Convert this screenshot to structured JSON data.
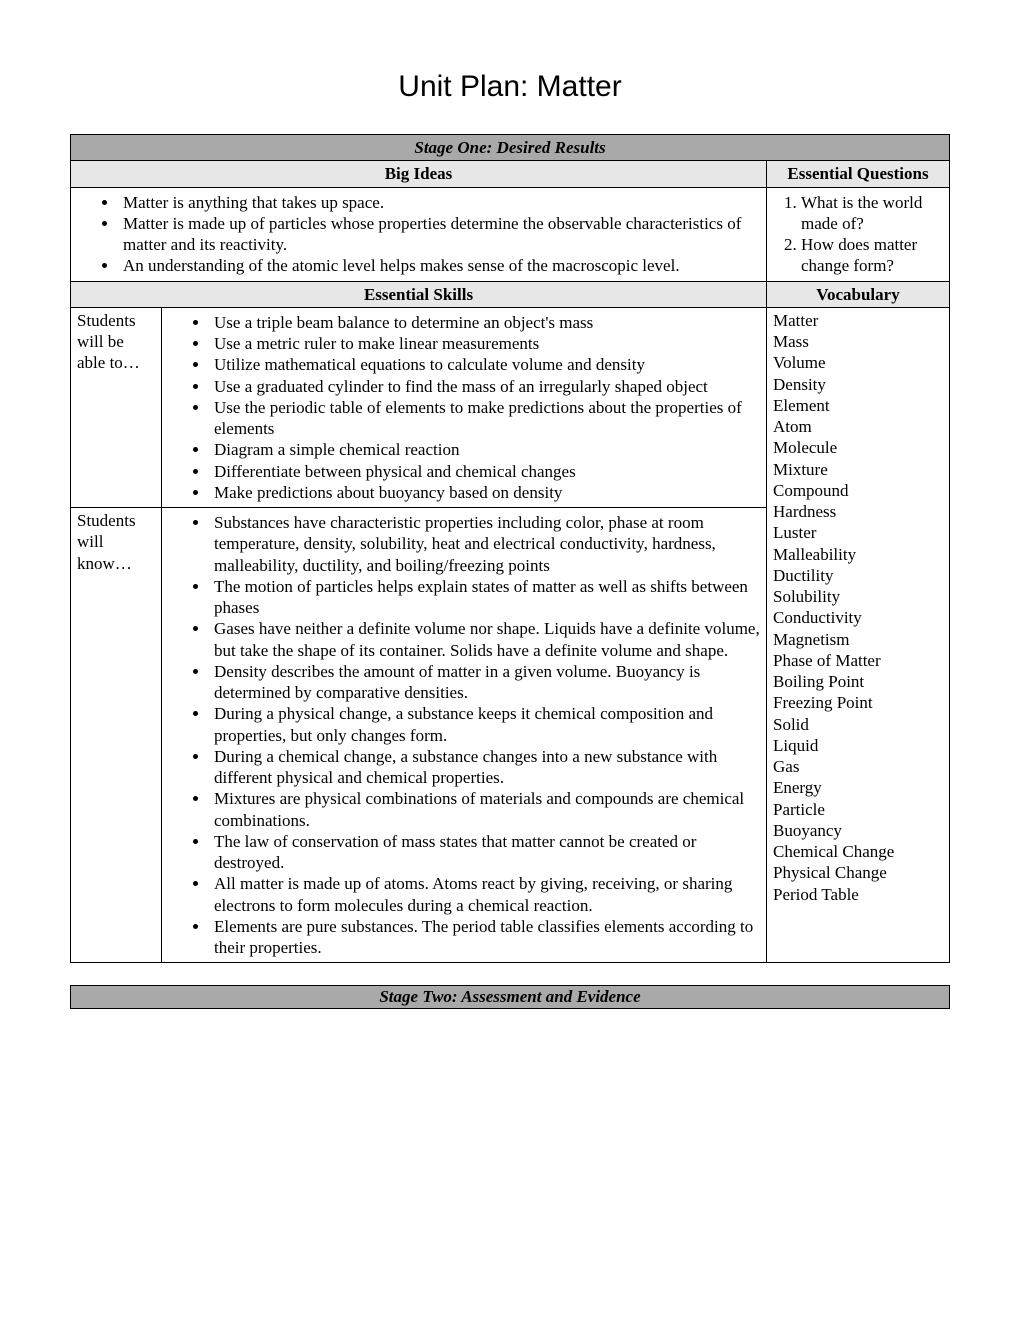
{
  "page_title": "Unit Plan: Matter",
  "stage_one_header": "Stage One: Desired Results",
  "big_ideas_header": "Big Ideas",
  "essential_questions_header": "Essential Questions",
  "big_ideas": [
    "Matter is anything that takes up space.",
    "Matter is made up of particles whose properties determine the observable characteristics of matter and its reactivity.",
    "An understanding of the atomic level helps makes sense of the macroscopic level."
  ],
  "essential_questions": [
    "What is the world made of?",
    "How does matter change form?"
  ],
  "essential_skills_header": "Essential Skills",
  "vocabulary_header": "Vocabulary",
  "able_to_label": "Students will be able to…",
  "will_know_label": "Students will know…",
  "able_to": [
    "Use a triple beam balance to determine an object's mass",
    "Use a metric ruler to make linear measurements",
    "Utilize mathematical equations to calculate volume and density",
    "Use a graduated cylinder to find the mass of an irregularly shaped object",
    "Use the periodic table of elements to make predictions about the properties of elements",
    "Diagram a simple chemical reaction",
    "Differentiate between physical and chemical changes",
    "Make predictions about buoyancy based on density"
  ],
  "will_know": [
    "Substances have characteristic properties including color, phase at room temperature, density, solubility, heat and electrical conductivity, hardness, malleability, ductility, and boiling/freezing points",
    "The motion of particles helps explain states of matter as well as shifts between phases",
    "Gases have neither a definite volume nor shape.  Liquids have a definite volume, but take the shape of its container.  Solids have a definite volume and shape.",
    "Density describes the amount of matter in a given volume.  Buoyancy is determined by comparative densities.",
    "During a physical change, a substance keeps it chemical composition and properties, but only changes form.",
    "During a chemical change, a substance changes into a new substance with different physical and chemical properties.",
    "Mixtures are physical combinations of materials and compounds are chemical combinations.",
    "The law of conservation of mass states that matter cannot be created or destroyed.",
    "All matter is made up of atoms.  Atoms react by giving, receiving, or sharing electrons to form molecules during a chemical reaction.",
    "Elements are pure substances.  The period table classifies elements according to their properties."
  ],
  "vocabulary": [
    "Matter",
    "Mass",
    "Volume",
    "Density",
    "Element",
    "Atom",
    "Molecule",
    "Mixture",
    "Compound",
    "Hardness",
    "Luster",
    "Malleability",
    "Ductility",
    "Solubility",
    "Conductivity",
    "Magnetism",
    "Phase of Matter",
    "Boiling Point",
    "Freezing Point",
    "Solid",
    "Liquid",
    "Gas",
    "Energy",
    "Particle",
    "Buoyancy",
    "Chemical Change",
    "Physical Change",
    "Period Table"
  ],
  "stage_two_header": "Stage Two: Assessment and Evidence"
}
